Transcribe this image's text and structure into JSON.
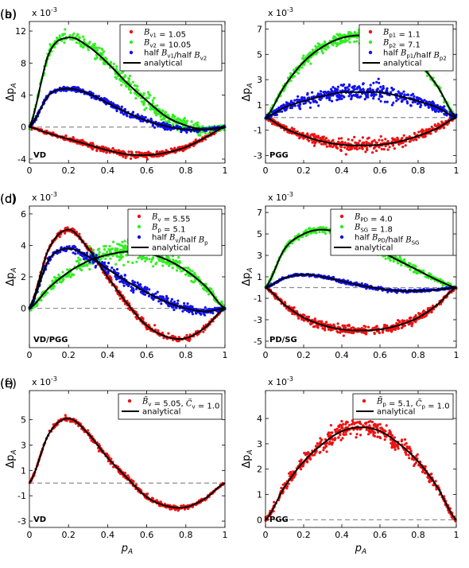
{
  "scale_label": "x 10",
  "scale_exponent": "-3",
  "colors": {
    "red": "#ee1111",
    "green": "#33ee22",
    "blue": "#1111ee",
    "black": "#000000",
    "zero": "#8c8c8c"
  },
  "chart_data": [
    {
      "panel": "(a)",
      "type": "scatter",
      "corner_label": "VD",
      "xlabel": "",
      "ylabel": "Δp_A",
      "xlim": [
        0,
        1
      ],
      "ylim": [
        -4.5,
        13.2
      ],
      "xticks": [
        0,
        0.2,
        0.4,
        0.6,
        0.8,
        1
      ],
      "yticks": [
        -4,
        0,
        4,
        8,
        12
      ],
      "legend": [
        {
          "label": "B_v1 = 1.05",
          "color": "red",
          "marker": "dot"
        },
        {
          "label": "B_v2 = 10.05",
          "color": "green",
          "marker": "dot"
        },
        {
          "label": "half B_v1/half B_v2",
          "color": "blue",
          "marker": "dot"
        },
        {
          "label": "analytical",
          "color": "black",
          "marker": "line"
        }
      ],
      "series": [
        {
          "color": "red",
          "noise": 0.35,
          "x": [
            0,
            0.1,
            0.2,
            0.3,
            0.4,
            0.5,
            0.6,
            0.7,
            0.8,
            0.9,
            1
          ],
          "y": [
            0,
            -0.8,
            -1.5,
            -2.2,
            -2.9,
            -3.4,
            -3.5,
            -3.2,
            -2.5,
            -1.3,
            0
          ]
        },
        {
          "color": "green",
          "noise": 0.9,
          "x": [
            0,
            0.1,
            0.2,
            0.3,
            0.4,
            0.5,
            0.6,
            0.7,
            0.8,
            0.9,
            1
          ],
          "y": [
            0,
            9.2,
            11.2,
            10.1,
            8.0,
            5.5,
            3.3,
            1.3,
            0.2,
            -0.3,
            0
          ]
        },
        {
          "color": "blue",
          "noise": 0.35,
          "x": [
            0,
            0.1,
            0.2,
            0.3,
            0.4,
            0.5,
            0.6,
            0.7,
            0.8,
            0.9,
            1
          ],
          "y": [
            0,
            4.0,
            4.8,
            4.2,
            3.0,
            1.8,
            0.8,
            0.1,
            -0.3,
            -0.3,
            0
          ]
        }
      ]
    },
    {
      "panel": "(b)",
      "type": "scatter",
      "corner_label": "PGG",
      "xlabel": "",
      "ylabel": "Δp_A",
      "xlim": [
        0,
        1
      ],
      "ylim": [
        -3.6,
        7.6
      ],
      "xticks": [
        0,
        0.2,
        0.4,
        0.6,
        0.8,
        1
      ],
      "yticks": [
        -3,
        -1,
        1,
        3,
        5,
        7
      ],
      "legend": [
        {
          "label": "B_p1 = 1.1",
          "color": "red",
          "marker": "dot"
        },
        {
          "label": "B_p2 = 7.1",
          "color": "green",
          "marker": "dot"
        },
        {
          "label": "half B_p1/half B_p2",
          "color": "blue",
          "marker": "dot"
        },
        {
          "label": "analytical",
          "color": "black",
          "marker": "line"
        }
      ],
      "series": [
        {
          "color": "red",
          "noise": 0.45,
          "x": [
            0,
            0.1,
            0.2,
            0.3,
            0.4,
            0.5,
            0.6,
            0.7,
            0.8,
            0.9,
            1
          ],
          "y": [
            0,
            -0.85,
            -1.45,
            -1.9,
            -2.15,
            -2.2,
            -2.15,
            -1.9,
            -1.45,
            -0.85,
            0
          ]
        },
        {
          "color": "green",
          "noise": 0.45,
          "x": [
            0,
            0.1,
            0.2,
            0.3,
            0.4,
            0.5,
            0.6,
            0.7,
            0.8,
            0.9,
            1
          ],
          "y": [
            0,
            2.5,
            4.4,
            5.6,
            6.3,
            6.5,
            6.3,
            5.6,
            4.4,
            2.5,
            0
          ]
        },
        {
          "color": "blue",
          "noise": 0.55,
          "x": [
            0,
            0.1,
            0.2,
            0.3,
            0.4,
            0.5,
            0.6,
            0.7,
            0.8,
            0.9,
            1
          ],
          "y": [
            0,
            0.8,
            1.3,
            1.7,
            2.0,
            2.0,
            2.0,
            1.7,
            1.3,
            0.8,
            0
          ]
        }
      ]
    },
    {
      "panel": "(c)",
      "type": "scatter",
      "corner_label": "VD/PGG",
      "xlabel": "",
      "ylabel": "Δp_A",
      "xlim": [
        0,
        1
      ],
      "ylim": [
        -2.5,
        6.5
      ],
      "xticks": [
        0,
        0.2,
        0.4,
        0.6,
        0.8,
        1
      ],
      "yticks": [
        0,
        2,
        4,
        6
      ],
      "legend": [
        {
          "label": "B_v = 5.55",
          "color": "red",
          "marker": "dot"
        },
        {
          "label": "B_p = 5.1",
          "color": "green",
          "marker": "dot"
        },
        {
          "label": "half B_v/half B_p",
          "color": "blue",
          "marker": "dot"
        },
        {
          "label": "analytical",
          "color": "black",
          "marker": "line"
        }
      ],
      "series": [
        {
          "color": "red",
          "noise": 0.2,
          "x": [
            0,
            0.1,
            0.2,
            0.3,
            0.4,
            0.5,
            0.6,
            0.7,
            0.8,
            0.9,
            1
          ],
          "y": [
            0,
            3.8,
            5.0,
            3.8,
            2.0,
            0.3,
            -1.1,
            -1.8,
            -1.9,
            -1.2,
            0
          ]
        },
        {
          "color": "green",
          "noise": 0.55,
          "x": [
            0,
            0.1,
            0.2,
            0.3,
            0.4,
            0.5,
            0.6,
            0.7,
            0.8,
            0.9,
            1
          ],
          "y": [
            0,
            1.3,
            2.3,
            3.0,
            3.4,
            3.6,
            3.5,
            3.1,
            2.4,
            1.4,
            0
          ]
        },
        {
          "color": "blue",
          "noise": 0.3,
          "x": [
            0,
            0.1,
            0.2,
            0.3,
            0.4,
            0.5,
            0.6,
            0.7,
            0.8,
            0.9,
            1
          ],
          "y": [
            0,
            3.1,
            3.8,
            3.3,
            2.5,
            1.7,
            1.0,
            0.4,
            0.0,
            -0.2,
            0
          ]
        }
      ]
    },
    {
      "panel": "(d)",
      "type": "scatter",
      "corner_label": "PD/SG",
      "xlabel": "",
      "ylabel": "Δp_A",
      "xlim": [
        0,
        1
      ],
      "ylim": [
        -5.6,
        7.6
      ],
      "xticks": [
        0,
        0.2,
        0.4,
        0.6,
        0.8,
        1
      ],
      "yticks": [
        -5,
        -3,
        -1,
        1,
        3,
        5,
        7
      ],
      "legend": [
        {
          "label": "B_PD = 4.0",
          "color": "red",
          "marker": "dot"
        },
        {
          "label": "B_SG = 1.8",
          "color": "green",
          "marker": "dot"
        },
        {
          "label": "half B_PD/half B_SG",
          "color": "blue",
          "marker": "dot"
        },
        {
          "label": "analytical",
          "color": "black",
          "marker": "line"
        }
      ],
      "series": [
        {
          "color": "red",
          "noise": 0.4,
          "x": [
            0,
            0.1,
            0.2,
            0.3,
            0.4,
            0.5,
            0.6,
            0.7,
            0.8,
            0.9,
            1
          ],
          "y": [
            0,
            -1.6,
            -2.8,
            -3.5,
            -3.9,
            -4.0,
            -3.9,
            -3.5,
            -2.8,
            -1.6,
            0
          ]
        },
        {
          "color": "green",
          "noise": 0.35,
          "x": [
            0,
            0.1,
            0.2,
            0.3,
            0.4,
            0.5,
            0.6,
            0.7,
            0.8,
            0.9,
            1
          ],
          "y": [
            0,
            3.6,
            5.0,
            5.4,
            5.0,
            4.3,
            3.4,
            2.5,
            1.6,
            0.7,
            0
          ]
        },
        {
          "color": "blue",
          "noise": 0.15,
          "x": [
            0,
            0.1,
            0.2,
            0.3,
            0.4,
            0.5,
            0.6,
            0.7,
            0.8,
            0.9,
            1
          ],
          "y": [
            0,
            0.9,
            1.2,
            1.0,
            0.6,
            0.2,
            -0.1,
            -0.3,
            -0.3,
            -0.2,
            0
          ]
        }
      ]
    },
    {
      "panel": "(e)",
      "type": "scatter",
      "corner_label": "VD",
      "xlabel": "p_A",
      "ylabel": "Δp_A",
      "xlim": [
        0,
        1
      ],
      "ylim": [
        -3.5,
        7.3
      ],
      "xticks": [
        0,
        0.2,
        0.4,
        0.6,
        0.8,
        1
      ],
      "yticks": [
        -3,
        -1,
        1,
        3,
        5
      ],
      "legend": [
        {
          "label": "B̃_v = 5.05, C̃_v = 1.0",
          "color": "red",
          "marker": "dot"
        },
        {
          "label": "analytical",
          "color": "black",
          "marker": "line"
        }
      ],
      "series": [
        {
          "color": "red",
          "noise": 0.2,
          "x": [
            0,
            0.1,
            0.2,
            0.3,
            0.4,
            0.5,
            0.6,
            0.7,
            0.8,
            0.9,
            1
          ],
          "y": [
            0,
            3.9,
            5.1,
            3.9,
            2.0,
            0.4,
            -1.1,
            -1.8,
            -1.9,
            -1.2,
            0
          ]
        }
      ]
    },
    {
      "panel": "(f)",
      "type": "scatter",
      "corner_label": "PGG",
      "xlabel": "p_A",
      "ylabel": "Δp_A",
      "xlim": [
        0,
        1
      ],
      "ylim": [
        -0.3,
        5.1
      ],
      "xticks": [
        0,
        0.2,
        0.4,
        0.6,
        0.8,
        1
      ],
      "yticks": [
        0,
        1,
        2,
        3,
        4
      ],
      "legend": [
        {
          "label": "B̃_p = 5.1, C̃_p = 1.0",
          "color": "red",
          "marker": "dot"
        },
        {
          "label": "analytical",
          "color": "black",
          "marker": "line"
        }
      ],
      "series": [
        {
          "color": "red",
          "noise": 0.3,
          "x": [
            0,
            0.1,
            0.2,
            0.3,
            0.4,
            0.5,
            0.6,
            0.7,
            0.8,
            0.9,
            1
          ],
          "y": [
            0,
            1.3,
            2.3,
            3.0,
            3.5,
            3.65,
            3.5,
            3.0,
            2.3,
            1.3,
            0
          ]
        }
      ]
    }
  ]
}
